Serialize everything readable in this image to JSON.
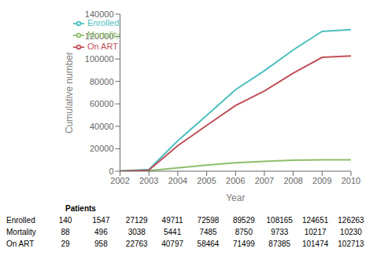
{
  "chart_data": {
    "type": "line",
    "x": [
      2002,
      2003,
      2004,
      2005,
      2006,
      2007,
      2008,
      2009,
      2010
    ],
    "series": [
      {
        "name": "Enrolled",
        "color": "#4DBFBF",
        "values": [
          140,
          1547,
          27129,
          49711,
          72598,
          89529,
          108165,
          124651,
          126263
        ]
      },
      {
        "name": "Mortality",
        "color": "#8DBF6A",
        "values": [
          88,
          496,
          3038,
          5441,
          7485,
          8750,
          9733,
          10217,
          10230
        ]
      },
      {
        "name": "On ART",
        "color": "#C0505A",
        "values": [
          29,
          958,
          22763,
          40797,
          58464,
          71499,
          87385,
          101474,
          102713
        ]
      }
    ],
    "xlabel": "Year",
    "ylabel": "Cumulative number",
    "xlim": [
      2002,
      2010
    ],
    "xticks": [
      2002,
      2003,
      2004,
      2005,
      2006,
      2007,
      2008,
      2009,
      2010
    ],
    "ylim": [
      0,
      140000
    ],
    "yticks": [
      0,
      20000,
      40000,
      60000,
      80000,
      100000,
      120000,
      140000
    ],
    "legend": "upper left",
    "grid": false,
    "table_title": "Patients"
  }
}
